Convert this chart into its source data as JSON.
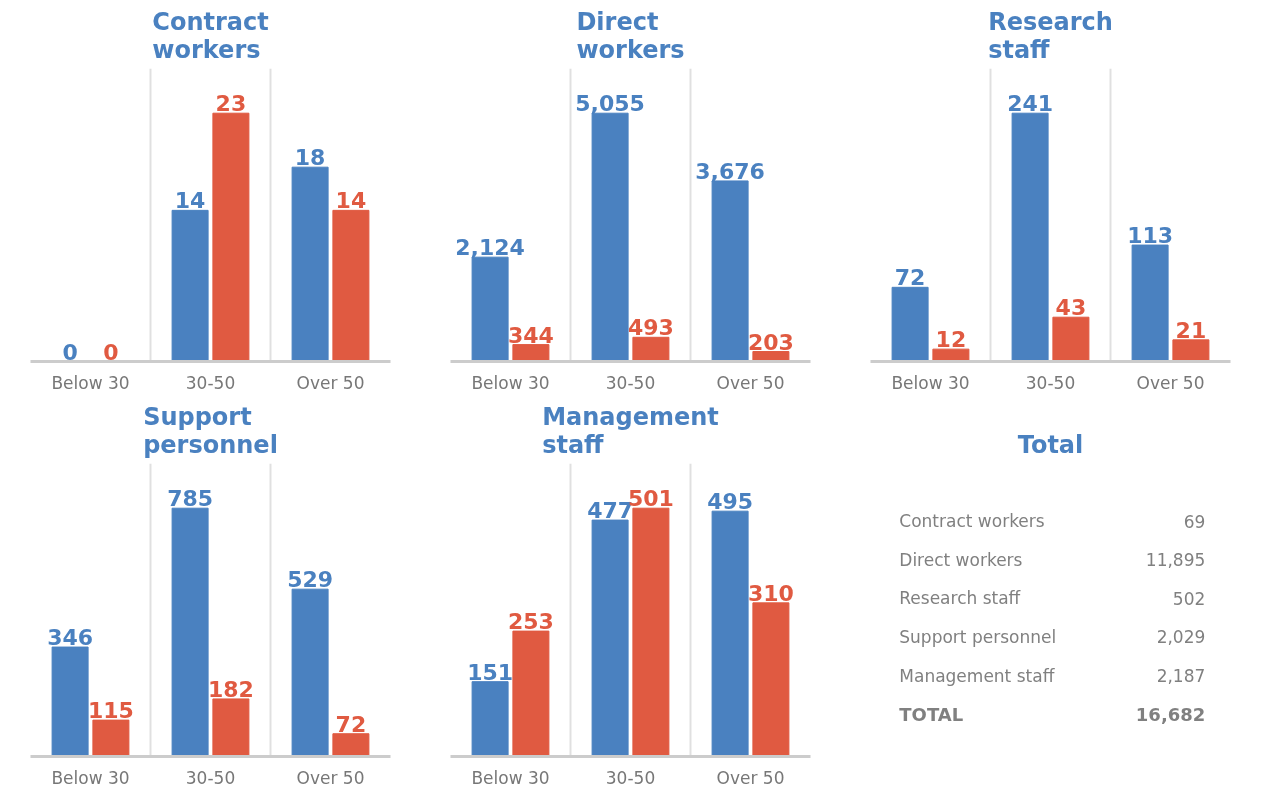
{
  "chart_data": [
    {
      "type": "bar",
      "title": "Contract workers",
      "categories": [
        "Below 30",
        "30-50",
        "Over 50"
      ],
      "data_labels": true,
      "grid": "x",
      "series": [
        {
          "color": "#4a81c0",
          "values": [
            0,
            14,
            18
          ]
        },
        {
          "color": "#e05a41",
          "values": [
            0,
            23,
            14
          ]
        }
      ]
    },
    {
      "type": "bar",
      "title": "Direct workers",
      "categories": [
        "Below 30",
        "30-50",
        "Over 50"
      ],
      "data_labels": true,
      "grid": "x",
      "series": [
        {
          "color": "#4a81c0",
          "values": [
            2124,
            5055,
            3676
          ],
          "value_labels": [
            "2,124",
            "5,055",
            "3,676"
          ]
        },
        {
          "color": "#e05a41",
          "values": [
            344,
            493,
            203
          ]
        }
      ]
    },
    {
      "type": "bar",
      "title": "Research staff",
      "categories": [
        "Below 30",
        "30-50",
        "Over 50"
      ],
      "data_labels": true,
      "grid": "x",
      "series": [
        {
          "color": "#4a81c0",
          "values": [
            72,
            241,
            113
          ]
        },
        {
          "color": "#e05a41",
          "values": [
            12,
            43,
            21
          ]
        }
      ]
    },
    {
      "type": "bar",
      "title": "Support personnel",
      "categories": [
        "Below 30",
        "30-50",
        "Over 50"
      ],
      "data_labels": true,
      "grid": "x",
      "series": [
        {
          "color": "#4a81c0",
          "values": [
            346,
            785,
            529
          ]
        },
        {
          "color": "#e05a41",
          "values": [
            115,
            182,
            72
          ]
        }
      ]
    },
    {
      "type": "bar",
      "title": "Management staff",
      "categories": [
        "Below 30",
        "30-50",
        "Over 50"
      ],
      "data_labels": true,
      "grid": "x",
      "series": [
        {
          "color": "#4a81c0",
          "values": [
            151,
            477,
            495
          ]
        },
        {
          "color": "#e05a41",
          "values": [
            253,
            501,
            310
          ]
        }
      ]
    },
    {
      "type": "other",
      "title": "Total",
      "categories": [
        "Contract workers",
        "Direct workers",
        "Research staff",
        "Support personnel",
        "Management staff"
      ],
      "value_labels": [
        "69",
        "11,895",
        "502",
        "2,029",
        "2,187"
      ],
      "annotations": [
        "TOTAL",
        "16,682"
      ]
    }
  ]
}
